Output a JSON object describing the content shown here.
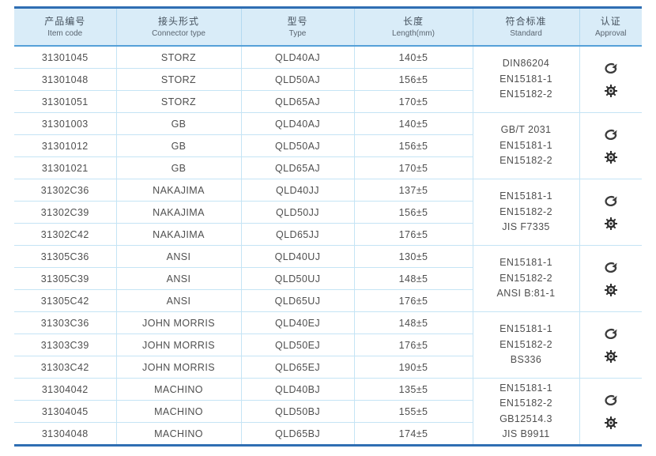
{
  "colors": {
    "heavy_border": "#2f6eb3",
    "header_bg": "#d9ecf8",
    "header_underline": "#55a0d8",
    "grid_line": "#c5e4f5",
    "cell_text": "#4f4f4f",
    "header_text": "#46525e"
  },
  "table": {
    "columns": [
      {
        "zh": "产品编号",
        "en": "Item code"
      },
      {
        "zh": "接头形式",
        "en": "Connector type"
      },
      {
        "zh": "型号",
        "en": "Type"
      },
      {
        "zh": "长度",
        "en": "Length(mm)"
      },
      {
        "zh": "符合标准",
        "en": "Standard"
      },
      {
        "zh": "认证",
        "en": "Approval"
      }
    ],
    "approval_icon_names": [
      "certificate-stamp-icon",
      "gear-seal-icon"
    ],
    "groups": [
      {
        "rows": [
          {
            "item_code": "31301045",
            "connector_type": "STORZ",
            "type": "QLD40AJ",
            "length": "140±5"
          },
          {
            "item_code": "31301048",
            "connector_type": "STORZ",
            "type": "QLD50AJ",
            "length": "156±5"
          },
          {
            "item_code": "31301051",
            "connector_type": "STORZ",
            "type": "QLD65AJ",
            "length": "170±5"
          }
        ],
        "standards": [
          "DIN86204",
          "EN15181-1",
          "EN15182-2"
        ]
      },
      {
        "rows": [
          {
            "item_code": "31301003",
            "connector_type": "GB",
            "type": "QLD40AJ",
            "length": "140±5"
          },
          {
            "item_code": "31301012",
            "connector_type": "GB",
            "type": "QLD50AJ",
            "length": "156±5"
          },
          {
            "item_code": "31301021",
            "connector_type": "GB",
            "type": "QLD65AJ",
            "length": "170±5"
          }
        ],
        "standards": [
          "GB/T 2031",
          "EN15181-1",
          "EN15182-2"
        ]
      },
      {
        "rows": [
          {
            "item_code": "31302C36",
            "connector_type": "NAKAJIMA",
            "type": "QLD40JJ",
            "length": "137±5"
          },
          {
            "item_code": "31302C39",
            "connector_type": "NAKAJIMA",
            "type": "QLD50JJ",
            "length": "156±5"
          },
          {
            "item_code": "31302C42",
            "connector_type": "NAKAJIMA",
            "type": "QLD65JJ",
            "length": "176±5"
          }
        ],
        "standards": [
          "EN15181-1",
          "EN15182-2",
          "JIS F7335"
        ]
      },
      {
        "rows": [
          {
            "item_code": "31305C36",
            "connector_type": "ANSI",
            "type": "QLD40UJ",
            "length": "130±5"
          },
          {
            "item_code": "31305C39",
            "connector_type": "ANSI",
            "type": "QLD50UJ",
            "length": "148±5"
          },
          {
            "item_code": "31305C42",
            "connector_type": "ANSI",
            "type": "QLD65UJ",
            "length": "176±5"
          }
        ],
        "standards": [
          "EN15181-1",
          "EN15182-2",
          "ANSI B:81-1"
        ]
      },
      {
        "rows": [
          {
            "item_code": "31303C36",
            "connector_type": "JOHN MORRIS",
            "type": "QLD40EJ",
            "length": "148±5"
          },
          {
            "item_code": "31303C39",
            "connector_type": "JOHN MORRIS",
            "type": "QLD50EJ",
            "length": "176±5"
          },
          {
            "item_code": "31303C42",
            "connector_type": "JOHN MORRIS",
            "type": "QLD65EJ",
            "length": "190±5"
          }
        ],
        "standards": [
          "EN15181-1",
          "EN15182-2",
          "BS336"
        ]
      },
      {
        "rows": [
          {
            "item_code": "31304042",
            "connector_type": "MACHINO",
            "type": "QLD40BJ",
            "length": "135±5"
          },
          {
            "item_code": "31304045",
            "connector_type": "MACHINO",
            "type": "QLD50BJ",
            "length": "155±5"
          },
          {
            "item_code": "31304048",
            "connector_type": "MACHINO",
            "type": "QLD65BJ",
            "length": "174±5"
          }
        ],
        "standards": [
          "EN15181-1",
          "EN15182-2",
          "GB12514.3",
          "JIS B9911"
        ]
      }
    ]
  }
}
